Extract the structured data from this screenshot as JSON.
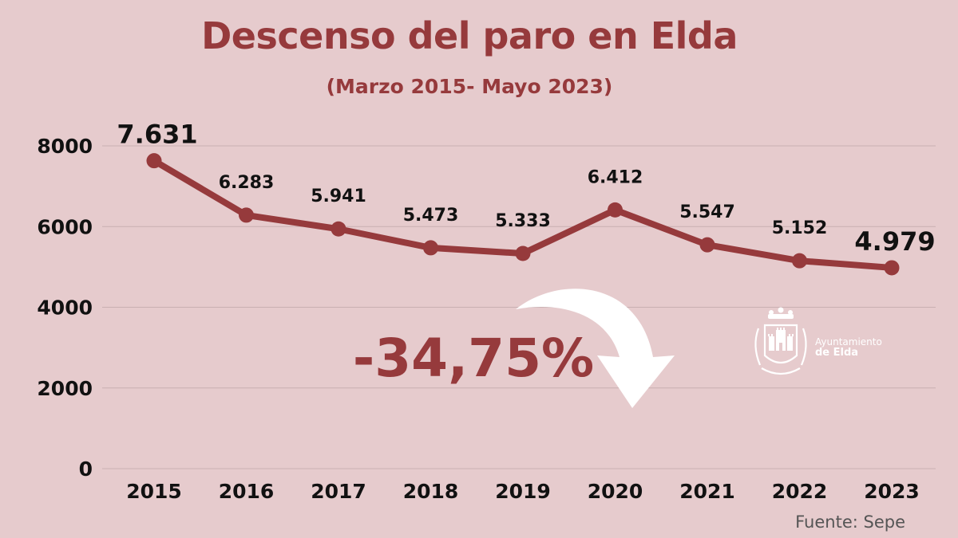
{
  "title": "Descenso del paro en Elda",
  "subtitle": "(Marzo 2015- Mayo 2023)",
  "source": "Fuente: Sepe",
  "highlight": "-34,75%",
  "logo": {
    "line1": "Ayuntamiento",
    "line2": "de Elda"
  },
  "colors": {
    "background": "#e6cbcd",
    "accent": "#963a3c",
    "gridline": "#c9b0b2",
    "arrow": "#ffffff"
  },
  "chart_data": {
    "type": "line",
    "categories": [
      "2015",
      "2016",
      "2017",
      "2018",
      "2019",
      "2020",
      "2021",
      "2022",
      "2023"
    ],
    "values": [
      7631,
      6283,
      5941,
      5473,
      5333,
      6412,
      5547,
      5152,
      4979
    ],
    "data_labels": [
      "7.631",
      "6.283",
      "5.941",
      "5.473",
      "5.333",
      "6.412",
      "5.547",
      "5.152",
      "4.979"
    ],
    "y_ticks": [
      "0",
      "2000",
      "4000",
      "6000",
      "8000"
    ],
    "ylim": [
      0,
      8000
    ],
    "grid": true,
    "legend": "none"
  }
}
